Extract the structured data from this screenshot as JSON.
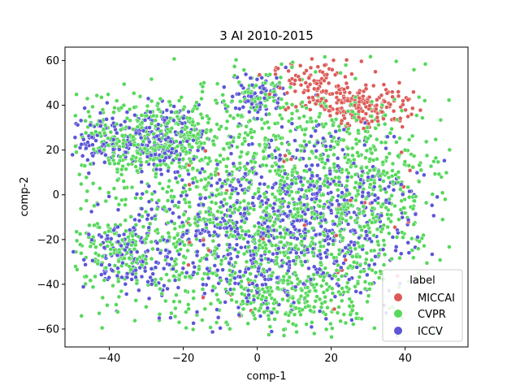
{
  "chart_data": {
    "type": "scatter",
    "title": "3 AI 2010-2015",
    "xlabel": "comp-1",
    "ylabel": "comp-2",
    "xlim": [
      -52,
      57
    ],
    "ylim": [
      -68,
      66
    ],
    "xticks": [
      -40,
      -20,
      0,
      20,
      40
    ],
    "yticks": [
      -60,
      -40,
      -20,
      0,
      20,
      40,
      60
    ],
    "grid": false,
    "legend": {
      "title": "label",
      "placement": "lower-right"
    },
    "series": [
      {
        "name": "MICCAI",
        "color": "#dc5b57",
        "clusters": [
          {
            "cx": 16,
            "cy": 48,
            "sx": 6,
            "sy": 6,
            "n": 110
          },
          {
            "cx": 30,
            "cy": 40,
            "sx": 6,
            "sy": 5,
            "n": 150
          }
        ],
        "scatter_n": 40,
        "point_count": 300
      },
      {
        "name": "CVPR",
        "color": "#56d85b",
        "clusters": [
          {
            "cx": -25,
            "cy": 25,
            "sx": 9,
            "sy": 9,
            "n": 300
          },
          {
            "cx": -40,
            "cy": 22,
            "sx": 6,
            "sy": 8,
            "n": 100
          },
          {
            "cx": 0,
            "cy": -10,
            "sx": 20,
            "sy": 25,
            "n": 900
          },
          {
            "cx": 25,
            "cy": 5,
            "sx": 14,
            "sy": 22,
            "n": 500
          },
          {
            "cx": -35,
            "cy": -25,
            "sx": 8,
            "sy": 10,
            "n": 200
          },
          {
            "cx": 10,
            "cy": -45,
            "sx": 12,
            "sy": 8,
            "n": 200
          },
          {
            "cx": 0,
            "cy": 42,
            "sx": 6,
            "sy": 6,
            "n": 80
          }
        ],
        "point_count": 2280
      },
      {
        "name": "ICCV",
        "color": "#5b55d8",
        "clusters": [
          {
            "cx": -28,
            "cy": 25,
            "sx": 6,
            "sy": 7,
            "n": 170
          },
          {
            "cx": -42,
            "cy": 25,
            "sx": 4,
            "sy": 6,
            "n": 70
          },
          {
            "cx": 0,
            "cy": 45,
            "sx": 4,
            "sy": 5,
            "n": 80
          },
          {
            "cx": -3,
            "cy": -18,
            "sx": 16,
            "sy": 20,
            "n": 550
          },
          {
            "cx": 22,
            "cy": -5,
            "sx": 12,
            "sy": 20,
            "n": 300
          },
          {
            "cx": -35,
            "cy": -28,
            "sx": 6,
            "sy": 8,
            "n": 100
          }
        ],
        "point_count": 1270
      }
    ]
  }
}
